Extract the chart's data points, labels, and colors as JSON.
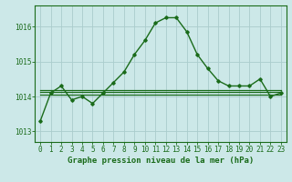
{
  "title": "Graphe pression niveau de la mer (hPa)",
  "background_color": "#cce8e8",
  "grid_color": "#aacccc",
  "line_color": "#1a6b1a",
  "border_color": "#1a6b1a",
  "x_ticks": [
    0,
    1,
    2,
    3,
    4,
    5,
    6,
    7,
    8,
    9,
    10,
    11,
    12,
    13,
    14,
    15,
    16,
    17,
    18,
    19,
    20,
    21,
    22,
    23
  ],
  "y_ticks": [
    1013,
    1014,
    1015,
    1016
  ],
  "ylim": [
    1012.7,
    1016.6
  ],
  "xlim": [
    -0.5,
    23.5
  ],
  "main_series": [
    1013.3,
    1014.1,
    1014.3,
    1013.9,
    1014.0,
    1013.8,
    1014.1,
    1014.4,
    1014.7,
    1015.2,
    1015.6,
    1016.1,
    1016.25,
    1016.25,
    1015.85,
    1015.2,
    1014.8,
    1014.45,
    1014.3,
    1014.3,
    1014.3,
    1014.5,
    1014.0,
    1014.1
  ],
  "flat_series1": [
    1014.12,
    1014.12,
    1014.12,
    1014.12,
    1014.12,
    1014.12,
    1014.12,
    1014.12,
    1014.12,
    1014.12,
    1014.12,
    1014.12,
    1014.12,
    1014.12,
    1014.12,
    1014.12,
    1014.12,
    1014.12,
    1014.12,
    1014.12,
    1014.12,
    1014.12,
    1014.12,
    1014.12
  ],
  "flat_series2": [
    1014.18,
    1014.18,
    1014.18,
    1014.18,
    1014.18,
    1014.18,
    1014.18,
    1014.18,
    1014.18,
    1014.18,
    1014.18,
    1014.18,
    1014.18,
    1014.18,
    1014.18,
    1014.18,
    1014.18,
    1014.18,
    1014.18,
    1014.18,
    1014.18,
    1014.18,
    1014.18,
    1014.18
  ],
  "flat_series3": [
    1014.06,
    1014.06,
    1014.06,
    1014.06,
    1014.06,
    1014.06,
    1014.06,
    1014.06,
    1014.06,
    1014.06,
    1014.06,
    1014.06,
    1014.06,
    1014.06,
    1014.06,
    1014.06,
    1014.06,
    1014.06,
    1014.06,
    1014.06,
    1014.06,
    1014.06,
    1014.06,
    1014.06
  ],
  "title_fontsize": 6.5,
  "tick_fontsize": 5.5,
  "fig_width": 3.2,
  "fig_height": 2.0,
  "dpi": 100
}
